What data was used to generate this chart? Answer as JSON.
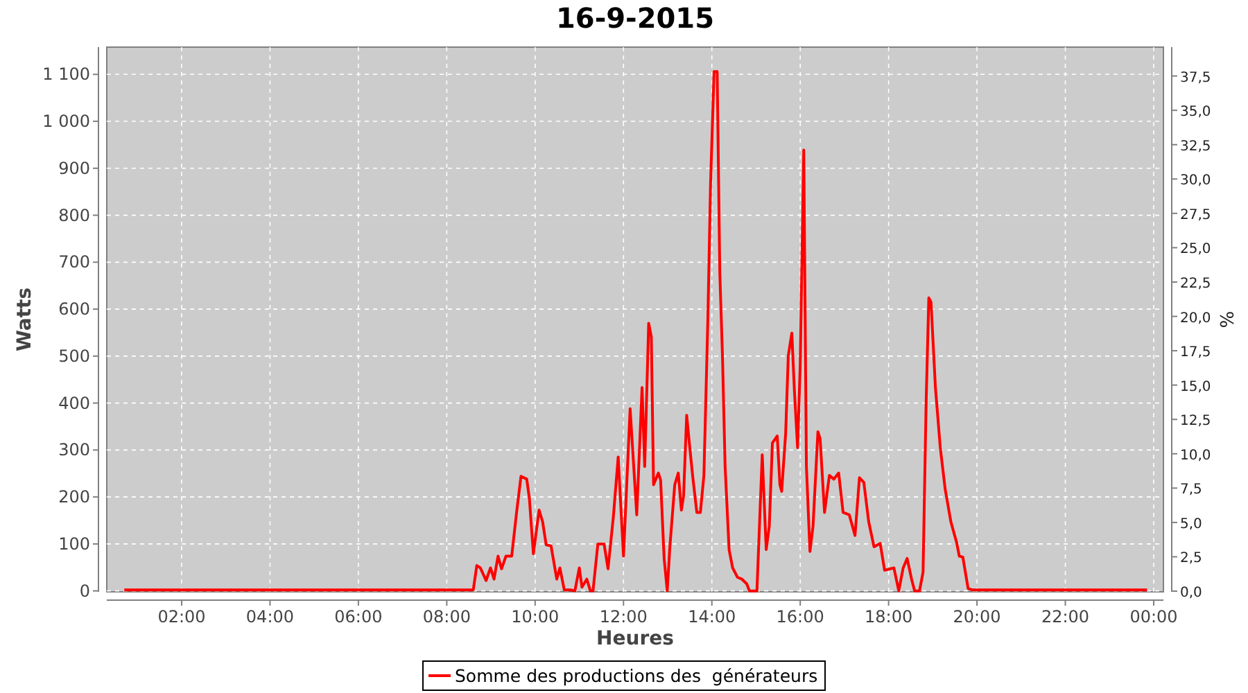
{
  "chart_data": {
    "type": "line",
    "title": "16-9-2015",
    "xlabel": "Heures",
    "ylabel": "Watts",
    "y2label": "%",
    "xlim": [
      0.305,
      24.22
    ],
    "ylim": [
      -2,
      1158
    ],
    "y2lim": [
      -0.05,
      39.6
    ],
    "xticks": [
      {
        "value": 2,
        "label": "02:00"
      },
      {
        "value": 4,
        "label": "04:00"
      },
      {
        "value": 6,
        "label": "06:00"
      },
      {
        "value": 8,
        "label": "08:00"
      },
      {
        "value": 10,
        "label": "10:00"
      },
      {
        "value": 12,
        "label": "12:00"
      },
      {
        "value": 14,
        "label": "14:00"
      },
      {
        "value": 16,
        "label": "16:00"
      },
      {
        "value": 18,
        "label": "18:00"
      },
      {
        "value": 20,
        "label": "20:00"
      },
      {
        "value": 22,
        "label": "22:00"
      },
      {
        "value": 24,
        "label": "00:00"
      }
    ],
    "yticks": [
      0,
      100,
      200,
      300,
      400,
      500,
      600,
      700,
      800,
      900,
      {
        "value": 1000,
        "label": "1 000"
      },
      {
        "value": 1100,
        "label": "1 100"
      }
    ],
    "y2ticks": [
      {
        "value": 0,
        "label": "0,0"
      },
      {
        "value": 2.5,
        "label": "2,5"
      },
      {
        "value": 5,
        "label": "5,0"
      },
      {
        "value": 7.5,
        "label": "7,5"
      },
      {
        "value": 10,
        "label": "10,0"
      },
      {
        "value": 12.5,
        "label": "12,5"
      },
      {
        "value": 15,
        "label": "15,0"
      },
      {
        "value": 17.5,
        "label": "17,5"
      },
      {
        "value": 20,
        "label": "20,0"
      },
      {
        "value": 22.5,
        "label": "22,5"
      },
      {
        "value": 25,
        "label": "25,0"
      },
      {
        "value": 27.5,
        "label": "27,5"
      },
      {
        "value": 30,
        "label": "30,0"
      },
      {
        "value": 32.5,
        "label": "32,5"
      },
      {
        "value": 35,
        "label": "35,0"
      },
      {
        "value": 37.5,
        "label": "37,5"
      }
    ],
    "grid": true,
    "legend": "bottom",
    "x": [
      0.7,
      4.16,
      7.3,
      8.6,
      8.68,
      8.76,
      8.89,
      8.99,
      9.07,
      9.16,
      9.24,
      9.34,
      9.47,
      9.58,
      9.68,
      9.81,
      9.87,
      9.96,
      10.09,
      10.17,
      10.25,
      10.36,
      10.49,
      10.56,
      10.66,
      10.8,
      10.9,
      11.0,
      11.06,
      11.17,
      11.25,
      11.31,
      11.42,
      11.56,
      11.65,
      11.77,
      11.88,
      12.0,
      12.15,
      12.3,
      12.42,
      12.48,
      12.57,
      12.63,
      12.68,
      12.79,
      12.84,
      12.92,
      12.99,
      13.05,
      13.16,
      13.24,
      13.31,
      13.36,
      13.43,
      13.49,
      13.57,
      13.66,
      13.74,
      13.82,
      13.91,
      13.97,
      14.05,
      14.12,
      14.18,
      14.24,
      14.3,
      14.39,
      14.47,
      14.58,
      14.68,
      14.79,
      14.85,
      15.02,
      15.14,
      15.23,
      15.3,
      15.37,
      15.48,
      15.54,
      15.58,
      15.67,
      15.73,
      15.81,
      15.87,
      15.94,
      16.0,
      16.08,
      16.14,
      16.22,
      16.29,
      16.4,
      16.45,
      16.55,
      16.66,
      16.76,
      16.87,
      16.97,
      17.11,
      17.24,
      17.34,
      17.44,
      17.55,
      17.67,
      17.81,
      17.91,
      18.12,
      18.23,
      18.33,
      18.42,
      18.52,
      18.59,
      18.7,
      18.78,
      18.85,
      18.91,
      18.96,
      19.06,
      19.17,
      19.28,
      19.41,
      19.54,
      19.6,
      19.68,
      19.8,
      19.9,
      21.5,
      23.85
    ],
    "series": [
      {
        "name": "Somme des productions des  générateurs",
        "color": "#ff0000",
        "values": [
          2,
          2,
          2,
          2,
          54,
          49,
          22,
          49,
          25,
          74,
          47,
          74,
          74,
          167,
          244,
          238,
          197,
          79,
          172,
          147,
          98,
          96,
          25,
          49,
          2,
          2,
          0,
          49,
          8,
          25,
          0,
          0,
          100,
          100,
          47,
          157,
          285,
          74,
          388,
          162,
          433,
          265,
          570,
          541,
          226,
          251,
          236,
          69,
          0,
          94,
          226,
          251,
          172,
          202,
          374,
          315,
          241,
          167,
          167,
          246,
          580,
          865,
          1106,
          1106,
          678,
          501,
          265,
          88,
          49,
          29,
          25,
          15,
          0,
          0,
          290,
          88,
          138,
          315,
          330,
          226,
          212,
          335,
          501,
          549,
          423,
          305,
          482,
          939,
          265,
          84,
          138,
          339,
          324,
          167,
          246,
          238,
          251,
          167,
          162,
          118,
          241,
          231,
          147,
          94,
          101,
          44,
          49,
          0,
          49,
          69,
          25,
          0,
          0,
          40,
          403,
          624,
          615,
          433,
          305,
          217,
          147,
          103,
          74,
          72,
          5,
          2,
          2,
          2
        ]
      }
    ]
  }
}
